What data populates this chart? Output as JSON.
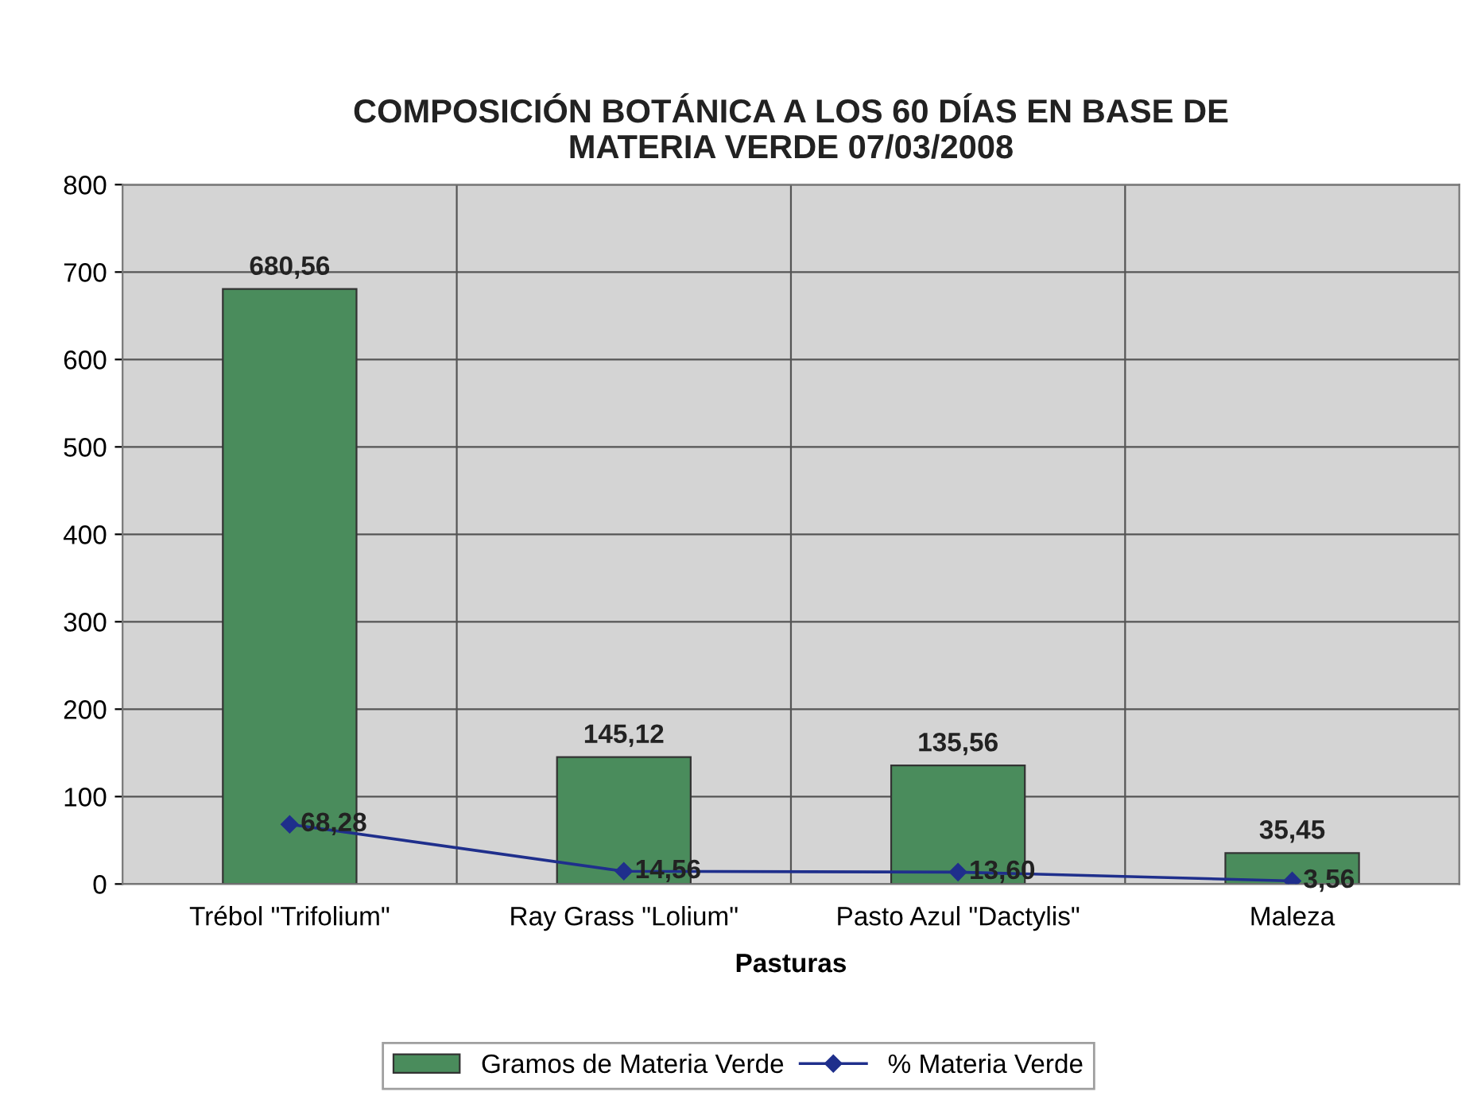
{
  "chart_data": {
    "type": "bar",
    "title": "COMPOSICIÓN BOTÁNICA A LOS 60 DÍAS EN BASE DE\nMATERIA VERDE 07/03/2008",
    "xlabel": "Pasturas",
    "categories": [
      "Trébol \"Trifolium\"",
      "Ray Grass \"Lolium\"",
      "Pasto Azul \"Dactylis\"",
      "Maleza"
    ],
    "series": [
      {
        "name": "Gramos de Materia Verde",
        "color": "#4a8c5c",
        "values": [
          680.56,
          145.12,
          135.56,
          35.45
        ],
        "value_labels": [
          "680,56",
          "145,12",
          "135,56",
          "35,45"
        ]
      },
      {
        "name": "% Materia Verde",
        "type": "line",
        "color": "#1f2f8c",
        "marker": "diamond",
        "values": [
          68.28,
          14.56,
          13.6,
          3.56
        ],
        "value_labels": [
          "68,28",
          "14,56",
          "13,60",
          "3,56"
        ]
      }
    ],
    "ylim": [
      0,
      800
    ],
    "yticks": [
      0,
      100,
      200,
      300,
      400,
      500,
      600,
      700,
      800
    ],
    "grid": true,
    "legend": "bottom"
  }
}
